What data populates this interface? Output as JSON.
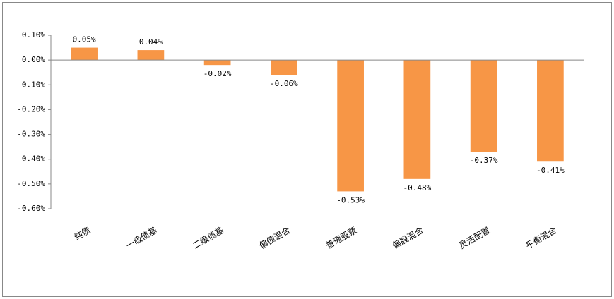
{
  "chart_data": {
    "type": "bar",
    "categories": [
      "纯债",
      "一级债基",
      "二级债基",
      "偏债混合",
      "普通股票",
      "偏股混合",
      "灵活配置",
      "平衡混合"
    ],
    "values": [
      0.05,
      0.04,
      -0.02,
      -0.06,
      -0.53,
      -0.48,
      -0.37,
      -0.41
    ],
    "value_labels": [
      "0.05%",
      "0.04%",
      "-0.02%",
      "-0.06%",
      "-0.53%",
      "-0.48%",
      "-0.37%",
      "-0.41%"
    ],
    "color": "#f79646",
    "ylim": [
      -0.6,
      0.1
    ],
    "yticks": [
      {
        "value": 0.1,
        "label": "0.10%"
      },
      {
        "value": 0,
        "label": "0.00%"
      },
      {
        "value": -0.1,
        "label": "-0.10%"
      },
      {
        "value": -0.2,
        "label": "-0.20%"
      },
      {
        "value": -0.3,
        "label": "-0.30%"
      },
      {
        "value": -0.4,
        "label": "-0.40%"
      },
      {
        "value": -0.5,
        "label": "-0.50%"
      },
      {
        "value": -0.6,
        "label": "-0.60%"
      }
    ],
    "grid": false
  }
}
